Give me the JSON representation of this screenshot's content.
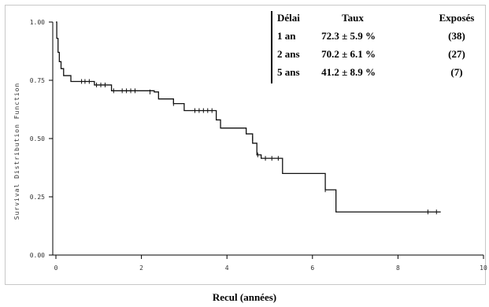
{
  "chart_data": {
    "type": "line",
    "title": "",
    "xlabel": "Recul (années)",
    "ylabel": "Survival Distribution Function",
    "xlim": [
      0,
      10
    ],
    "ylim": [
      0,
      1
    ],
    "x_ticks": [
      0,
      2,
      4,
      6,
      8,
      10
    ],
    "x_tick_labels": [
      "0",
      "2",
      "4",
      "6",
      "8",
      "10"
    ],
    "y_ticks": [
      0,
      0.25,
      0.5,
      0.75,
      1
    ],
    "y_tick_labels": [
      "0.00",
      "0.25",
      "0.50",
      "0.75",
      "1.00"
    ],
    "grid": false,
    "legend_position": "top-right",
    "series": [
      {
        "steps": [
          [
            0,
            1.0
          ],
          [
            0.02,
            0.93
          ],
          [
            0.05,
            0.87
          ],
          [
            0.08,
            0.83
          ],
          [
            0.12,
            0.8
          ],
          [
            0.18,
            0.77
          ],
          [
            0.35,
            0.745
          ],
          [
            0.9,
            0.73
          ],
          [
            1.3,
            0.705
          ],
          [
            2.3,
            0.7
          ],
          [
            2.4,
            0.67
          ],
          [
            2.75,
            0.65
          ],
          [
            3.0,
            0.62
          ],
          [
            3.75,
            0.58
          ],
          [
            3.85,
            0.545
          ],
          [
            4.45,
            0.52
          ],
          [
            4.6,
            0.48
          ],
          [
            4.7,
            0.43
          ],
          [
            4.8,
            0.415
          ],
          [
            5.3,
            0.35
          ],
          [
            6.3,
            0.28
          ],
          [
            6.55,
            0.185
          ],
          [
            9.0,
            0.185
          ]
        ],
        "censored": [
          [
            0.6,
            0.745
          ],
          [
            0.68,
            0.745
          ],
          [
            0.78,
            0.745
          ],
          [
            0.95,
            0.73
          ],
          [
            1.05,
            0.73
          ],
          [
            1.15,
            0.73
          ],
          [
            1.35,
            0.705
          ],
          [
            1.55,
            0.705
          ],
          [
            1.65,
            0.705
          ],
          [
            1.75,
            0.705
          ],
          [
            1.85,
            0.705
          ],
          [
            2.2,
            0.7
          ],
          [
            2.75,
            0.65
          ],
          [
            3.25,
            0.62
          ],
          [
            3.35,
            0.62
          ],
          [
            3.45,
            0.62
          ],
          [
            3.55,
            0.62
          ],
          [
            3.65,
            0.62
          ],
          [
            4.6,
            0.5
          ],
          [
            4.72,
            0.43
          ],
          [
            4.9,
            0.415
          ],
          [
            5.05,
            0.415
          ],
          [
            5.2,
            0.415
          ],
          [
            6.3,
            0.28
          ],
          [
            8.7,
            0.185
          ],
          [
            8.9,
            0.185
          ]
        ]
      }
    ],
    "table": {
      "headers": [
        "Délai",
        "Taux",
        "Exposés"
      ],
      "rows": [
        [
          "1 an",
          "72.3 ± 5.9  %",
          "(38)"
        ],
        [
          "2 ans",
          "70.2 ± 6.1  %",
          "(27)"
        ],
        [
          "5 ans",
          "41.2 ±  8.9 %",
          "(7)"
        ]
      ]
    }
  }
}
